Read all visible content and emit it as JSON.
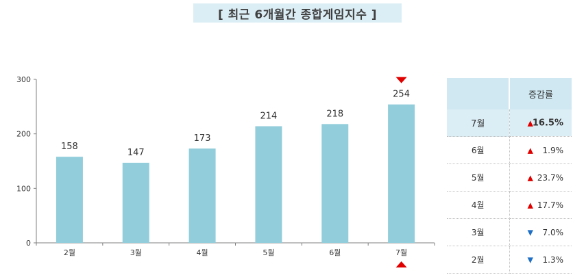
{
  "title": "[ 최근 6개월간 종합게임지수 ]",
  "colors": {
    "bar": "#92cddc",
    "axis": "#7f7f7f",
    "up": "#e00000",
    "down": "#1f6fc5",
    "highlight": "#dceef5",
    "header": "#cfe8f1"
  },
  "chart_data": {
    "type": "bar",
    "categories": [
      "2월",
      "3월",
      "4월",
      "5월",
      "6월",
      "7월"
    ],
    "values": [
      158,
      147,
      173,
      214,
      218,
      254
    ],
    "ylim": [
      0,
      300
    ],
    "yticks": [
      "0",
      "100",
      "200",
      "300"
    ],
    "data_labels": [
      "158",
      "147",
      "173",
      "214",
      "218",
      "254"
    ],
    "grid": false,
    "marker_category": "7월"
  },
  "table": {
    "header": "증감률",
    "rows": [
      {
        "month": "7월",
        "dir": "up",
        "arrow": "▲",
        "rate": "16.5%",
        "highlight": true
      },
      {
        "month": "6월",
        "dir": "up",
        "arrow": "▲",
        "rate": "1.9%",
        "highlight": false
      },
      {
        "month": "5월",
        "dir": "up",
        "arrow": "▲",
        "rate": "23.7%",
        "highlight": false
      },
      {
        "month": "4월",
        "dir": "up",
        "arrow": "▲",
        "rate": "17.7%",
        "highlight": false
      },
      {
        "month": "3월",
        "dir": "down",
        "arrow": "▼",
        "rate": "7.0%",
        "highlight": false
      },
      {
        "month": "2월",
        "dir": "down",
        "arrow": "▼",
        "rate": "1.3%",
        "highlight": false
      }
    ]
  }
}
